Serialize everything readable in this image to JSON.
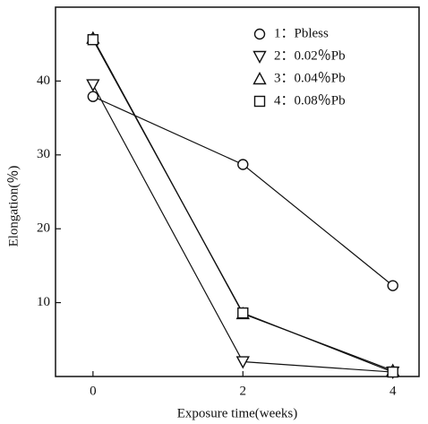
{
  "chart_data": {
    "type": "line",
    "x_label": "Exposure time(weeks)",
    "y_label": "Elongation(％)",
    "x": [
      0,
      2,
      4
    ],
    "xlim": [
      -0.5,
      4.35
    ],
    "xticks": [
      0,
      2,
      4
    ],
    "ylim": [
      0,
      50
    ],
    "yticks": [
      10,
      20,
      30,
      40
    ],
    "grid": false,
    "legend": "upper right",
    "series": [
      {
        "name": "1：Pbless",
        "marker": "circle",
        "color": "#111111",
        "values": [
          37.9,
          28.7,
          12.3
        ]
      },
      {
        "name": "2：0.02％Pb",
        "marker": "triangle-down",
        "color": "#111111",
        "values": [
          39.5,
          2.0,
          0.6
        ]
      },
      {
        "name": "3：0.04％Pb",
        "marker": "triangle-up",
        "color": "#111111",
        "values": [
          45.8,
          8.5,
          0.8
        ]
      },
      {
        "name": "4：0.08％Pb",
        "marker": "square",
        "color": "#111111",
        "values": [
          45.6,
          8.6,
          0.6
        ]
      }
    ]
  }
}
